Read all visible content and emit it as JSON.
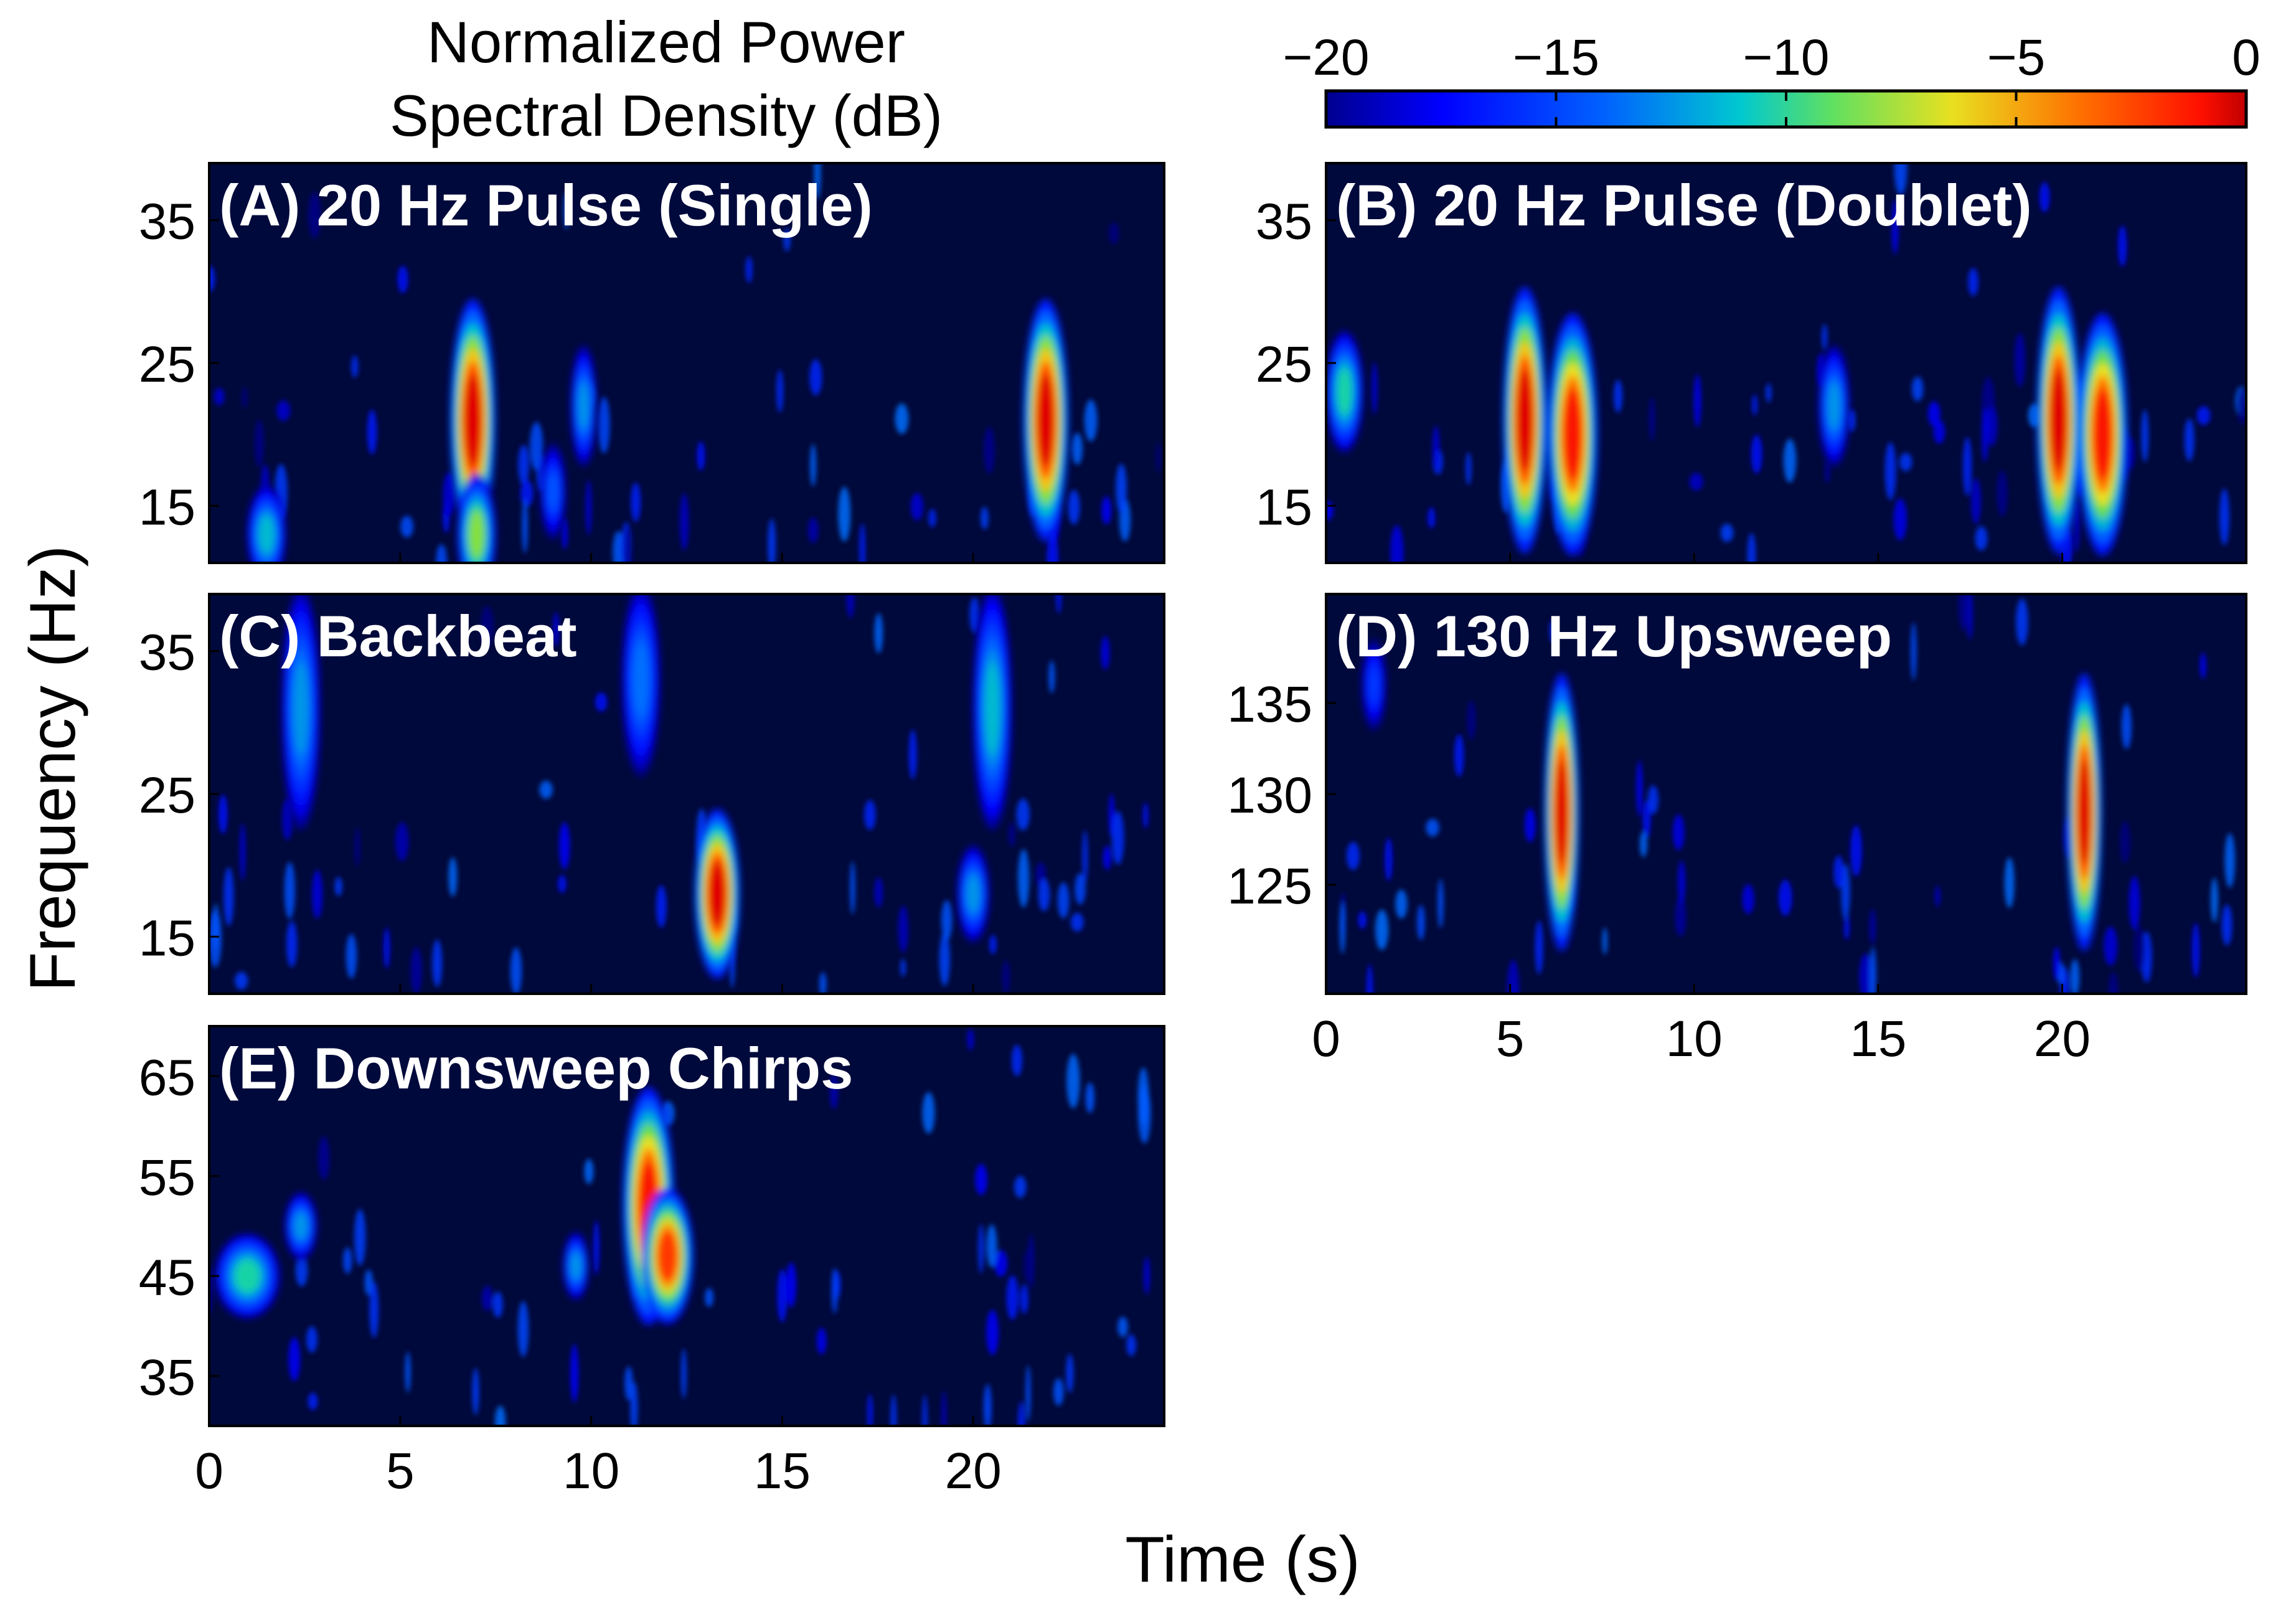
{
  "colors": {
    "background": "#00093b",
    "colormap": [
      "#00008f",
      "#0050ff",
      "#00dfff",
      "#70ff8f",
      "#ffdf00",
      "#ff5000",
      "#8f0000"
    ]
  },
  "chart_data": {
    "type": "heatmap",
    "shared_x": {
      "label": "Time (s)",
      "range": [
        0,
        25
      ],
      "ticks": [
        0,
        5,
        10,
        15,
        20
      ],
      "tick_labels": [
        "0",
        "5",
        "10",
        "15",
        "20"
      ]
    },
    "shared_y_label": "Frequency (Hz)",
    "colorbar": {
      "title_line1": "Normalized Power",
      "title_line2": "Spectral Density (dB)",
      "range": [
        -20,
        0
      ],
      "ticks": [
        -20,
        -15,
        -10,
        -5,
        0
      ],
      "tick_labels": [
        "−20",
        "−15",
        "−10",
        "−5",
        "0"
      ]
    },
    "panels": [
      {
        "id": "A",
        "label": "(A) 20 Hz Pulse (Single)",
        "ylim": [
          11,
          39
        ],
        "yticks": [
          15,
          25,
          35
        ],
        "ytick_labels": [
          "15",
          "25",
          "35"
        ],
        "events": [
          {
            "t": 6.9,
            "f": 21,
            "dt": 0.35,
            "df": 5.0,
            "db": 0
          },
          {
            "t": 21.9,
            "f": 21,
            "dt": 0.35,
            "df": 5.0,
            "db": 0
          },
          {
            "t": 7.0,
            "f": 13,
            "dt": 0.3,
            "df": 2.5,
            "db": -8
          },
          {
            "t": 1.5,
            "f": 13,
            "dt": 0.3,
            "df": 2.0,
            "db": -11
          },
          {
            "t": 9.8,
            "f": 22,
            "dt": 0.2,
            "df": 2.5,
            "db": -12
          },
          {
            "t": 9.0,
            "f": 16,
            "dt": 0.2,
            "df": 2.0,
            "db": -14
          }
        ]
      },
      {
        "id": "B",
        "label": "(B) 20 Hz Pulse (Doublet)",
        "ylim": [
          11,
          39
        ],
        "yticks": [
          15,
          25,
          35
        ],
        "ytick_labels": [
          "15",
          "25",
          "35"
        ],
        "events": [
          {
            "t": 5.4,
            "f": 21,
            "dt": 0.35,
            "df": 5.5,
            "db": 0
          },
          {
            "t": 6.7,
            "f": 20,
            "dt": 0.4,
            "df": 5.0,
            "db": -1
          },
          {
            "t": 19.9,
            "f": 21,
            "dt": 0.35,
            "df": 5.5,
            "db": 0
          },
          {
            "t": 21.1,
            "f": 20,
            "dt": 0.4,
            "df": 5.0,
            "db": -1
          },
          {
            "t": 0.5,
            "f": 23,
            "dt": 0.3,
            "df": 2.5,
            "db": -10
          },
          {
            "t": 13.8,
            "f": 22,
            "dt": 0.25,
            "df": 2.5,
            "db": -12
          }
        ]
      },
      {
        "id": "C",
        "label": "(C) Backbeat",
        "ylim": [
          11,
          39
        ],
        "yticks": [
          15,
          25,
          35
        ],
        "ytick_labels": [
          "15",
          "25",
          "35"
        ],
        "events": [
          {
            "t": 13.3,
            "f": 18,
            "dt": 0.35,
            "df": 3.5,
            "db": 0
          },
          {
            "t": 20.5,
            "f": 31,
            "dt": 0.3,
            "df": 5.0,
            "db": -11
          },
          {
            "t": 2.4,
            "f": 31,
            "dt": 0.3,
            "df": 5.0,
            "db": -12
          },
          {
            "t": 11.3,
            "f": 33,
            "dt": 0.3,
            "df": 4.0,
            "db": -13
          },
          {
            "t": 20.0,
            "f": 18,
            "dt": 0.25,
            "df": 2.0,
            "db": -12
          }
        ]
      },
      {
        "id": "D",
        "label": "(D) 130 Hz Upsweep",
        "ylim": [
          119,
          141
        ],
        "yticks": [
          125,
          130,
          135
        ],
        "ytick_labels": [
          "125",
          "130",
          "135"
        ],
        "events": [
          {
            "t": 6.4,
            "f": 129,
            "dt": 0.28,
            "df": 4.5,
            "db": 0
          },
          {
            "t": 20.6,
            "f": 129,
            "dt": 0.28,
            "df": 4.5,
            "db": 0
          },
          {
            "t": 1.3,
            "f": 136,
            "dt": 0.2,
            "df": 1.5,
            "db": -15
          }
        ]
      },
      {
        "id": "E",
        "label": "(E) Downsweep Chirps",
        "ylim": [
          30,
          70
        ],
        "yticks": [
          35,
          45,
          55,
          65
        ],
        "ytick_labels": [
          "35",
          "45",
          "55",
          "65"
        ],
        "events": [
          {
            "t": 11.5,
            "f": 52,
            "dt": 0.4,
            "df": 7.0,
            "db": -1
          },
          {
            "t": 12.0,
            "f": 47,
            "dt": 0.4,
            "df": 4.0,
            "db": -2
          },
          {
            "t": 1.0,
            "f": 45,
            "dt": 0.5,
            "df": 2.5,
            "db": -10
          },
          {
            "t": 2.4,
            "f": 50,
            "dt": 0.25,
            "df": 2.0,
            "db": -12
          },
          {
            "t": 9.6,
            "f": 46,
            "dt": 0.2,
            "df": 2.0,
            "db": -12
          }
        ]
      }
    ]
  }
}
